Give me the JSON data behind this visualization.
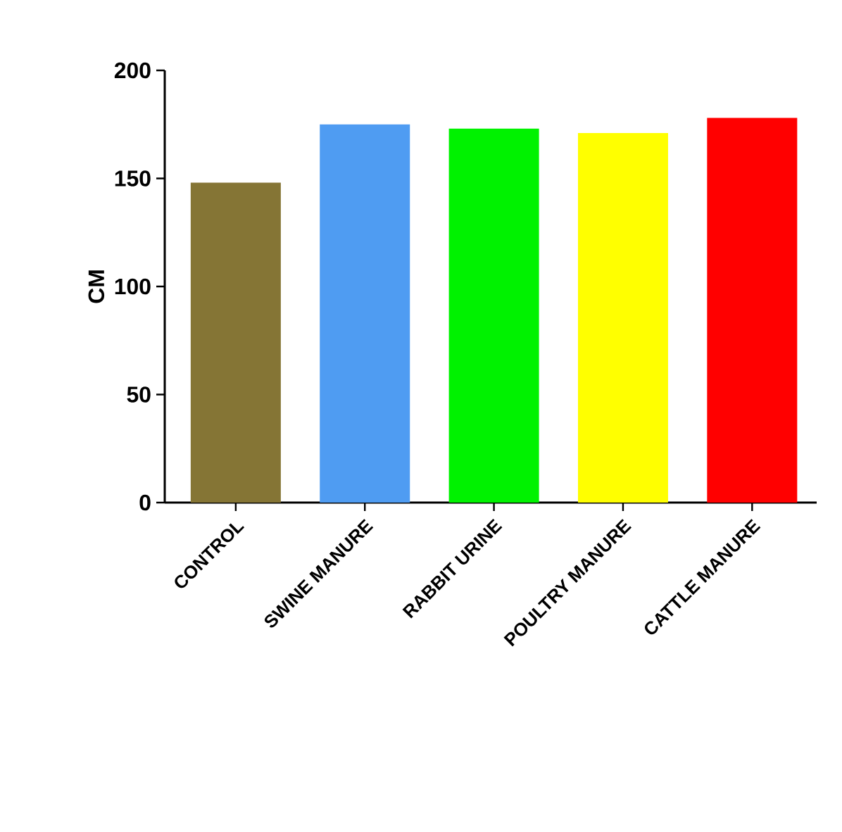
{
  "chart_data": {
    "type": "bar",
    "ylabel": "CM",
    "categories": [
      "CONTROL",
      "SWINE MANURE",
      "RABBIT URINE",
      "POULTRY MANURE",
      "CATTLE MANURE"
    ],
    "values": [
      148,
      175,
      173,
      171,
      178
    ],
    "colors": [
      "#857535",
      "#4f9cf2",
      "#00f200",
      "#ffff00",
      "#ff0000"
    ],
    "ylim": [
      0,
      200
    ],
    "yticks": [
      0,
      50,
      100,
      150,
      200
    ],
    "grid": false
  }
}
